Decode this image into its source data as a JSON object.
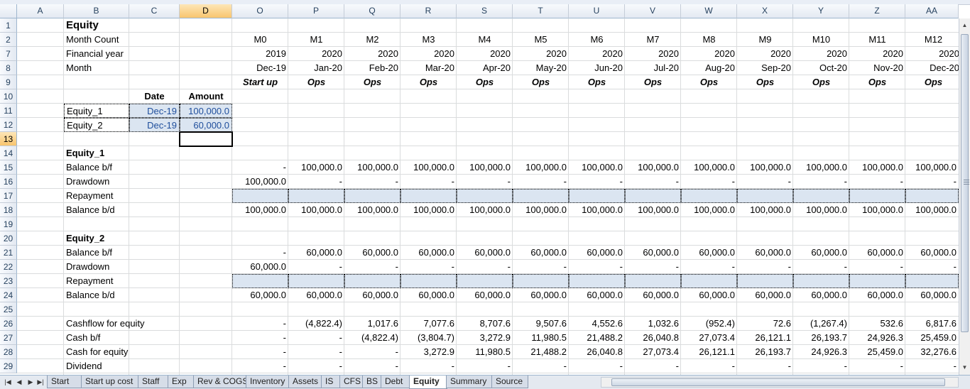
{
  "columns": [
    "A",
    "B",
    "C",
    "D",
    "O",
    "P",
    "Q",
    "R",
    "S",
    "T",
    "U",
    "V",
    "W",
    "X",
    "Y",
    "Z",
    "AA"
  ],
  "selected_column": "D",
  "rows": [
    1,
    2,
    7,
    8,
    9,
    10,
    11,
    12,
    13,
    14,
    15,
    16,
    17,
    18,
    19,
    20,
    21,
    22,
    23,
    24,
    25,
    26,
    27,
    28,
    29
  ],
  "selected_row": 13,
  "sheet": {
    "title": "Equity",
    "labels": {
      "month_count": "Month Count",
      "financial_year": "Financial year",
      "month": "Month",
      "date_header": "Date",
      "amount_header": "Amount"
    },
    "months": {
      "count": [
        "M0",
        "M1",
        "M2",
        "M3",
        "M4",
        "M5",
        "M6",
        "M7",
        "M8",
        "M9",
        "M10",
        "M11",
        "M12"
      ],
      "year": [
        "2019",
        "2020",
        "2020",
        "2020",
        "2020",
        "2020",
        "2020",
        "2020",
        "2020",
        "2020",
        "2020",
        "2020",
        "2020"
      ],
      "month": [
        "Dec-19",
        "Jan-20",
        "Feb-20",
        "Mar-20",
        "Apr-20",
        "May-20",
        "Jun-20",
        "Jul-20",
        "Aug-20",
        "Sep-20",
        "Oct-20",
        "Nov-20",
        "Dec-20"
      ],
      "phase": [
        "Start up",
        "Ops",
        "Ops",
        "Ops",
        "Ops",
        "Ops",
        "Ops",
        "Ops",
        "Ops",
        "Ops",
        "Ops",
        "Ops",
        "Ops"
      ]
    },
    "inputs": [
      {
        "name": "Equity_1",
        "date": "Dec-19",
        "amount": "100,000.0"
      },
      {
        "name": "Equity_2",
        "date": "Dec-19",
        "amount": "60,000.0"
      }
    ],
    "blocks": [
      {
        "title": "Equity_1",
        "rows": [
          {
            "label": "Balance b/f",
            "values": [
              "-",
              "100,000.0",
              "100,000.0",
              "100,000.0",
              "100,000.0",
              "100,000.0",
              "100,000.0",
              "100,000.0",
              "100,000.0",
              "100,000.0",
              "100,000.0",
              "100,000.0",
              "100,000.0"
            ]
          },
          {
            "label": "Drawdown",
            "values": [
              "100,000.0",
              "-",
              "-",
              "-",
              "-",
              "-",
              "-",
              "-",
              "-",
              "-",
              "-",
              "-",
              "-"
            ]
          },
          {
            "label": "Repayment",
            "values": [
              "",
              "",
              "",
              "",
              "",
              "",
              "",
              "",
              "",
              "",
              "",
              "",
              ""
            ]
          },
          {
            "label": "Balance b/d",
            "values": [
              "100,000.0",
              "100,000.0",
              "100,000.0",
              "100,000.0",
              "100,000.0",
              "100,000.0",
              "100,000.0",
              "100,000.0",
              "100,000.0",
              "100,000.0",
              "100,000.0",
              "100,000.0",
              "100,000.0"
            ]
          }
        ]
      },
      {
        "title": "Equity_2",
        "rows": [
          {
            "label": "Balance b/f",
            "values": [
              "-",
              "60,000.0",
              "60,000.0",
              "60,000.0",
              "60,000.0",
              "60,000.0",
              "60,000.0",
              "60,000.0",
              "60,000.0",
              "60,000.0",
              "60,000.0",
              "60,000.0",
              "60,000.0"
            ]
          },
          {
            "label": "Drawdown",
            "values": [
              "60,000.0",
              "-",
              "-",
              "-",
              "-",
              "-",
              "-",
              "-",
              "-",
              "-",
              "-",
              "-",
              "-"
            ]
          },
          {
            "label": "Repayment",
            "values": [
              "",
              "",
              "",
              "",
              "",
              "",
              "",
              "",
              "",
              "",
              "",
              "",
              ""
            ]
          },
          {
            "label": "Balance b/d",
            "values": [
              "60,000.0",
              "60,000.0",
              "60,000.0",
              "60,000.0",
              "60,000.0",
              "60,000.0",
              "60,000.0",
              "60,000.0",
              "60,000.0",
              "60,000.0",
              "60,000.0",
              "60,000.0",
              "60,000.0"
            ]
          }
        ]
      }
    ],
    "cash_rows": [
      {
        "label": "Cashflow for equity",
        "values": [
          "-",
          "(4,822.4)",
          "1,017.6",
          "7,077.6",
          "8,707.6",
          "9,507.6",
          "4,552.6",
          "1,032.6",
          "(952.4)",
          "72.6",
          "(1,267.4)",
          "532.6",
          "6,817.6"
        ]
      },
      {
        "label": "Cash b/f",
        "values": [
          "-",
          "-",
          "(4,822.4)",
          "(3,804.7)",
          "3,272.9",
          "11,980.5",
          "21,488.2",
          "26,040.8",
          "27,073.4",
          "26,121.1",
          "26,193.7",
          "24,926.3",
          "25,459.0"
        ]
      },
      {
        "label": "Cash for equity",
        "values": [
          "-",
          "-",
          "-",
          "3,272.9",
          "11,980.5",
          "21,488.2",
          "26,040.8",
          "27,073.4",
          "26,121.1",
          "26,193.7",
          "24,926.3",
          "25,459.0",
          "32,276.6"
        ]
      },
      {
        "label": "Dividend",
        "values": [
          "-",
          "-",
          "-",
          "-",
          "-",
          "-",
          "-",
          "-",
          "-",
          "-",
          "-",
          "-",
          "-"
        ]
      }
    ]
  },
  "tabs": [
    "Start",
    "Start up cost",
    "Staff",
    "Exp",
    "Rev & COGS",
    "Inventory",
    "Assets",
    "IS",
    "CFS",
    "BS",
    "Debt",
    "Equity",
    "Summary",
    "Source"
  ],
  "active_tab": "Equity",
  "icons": {
    "first": "first-sheet-icon",
    "prev": "prev-sheet-icon",
    "next": "next-sheet-icon",
    "last": "last-sheet-icon"
  }
}
